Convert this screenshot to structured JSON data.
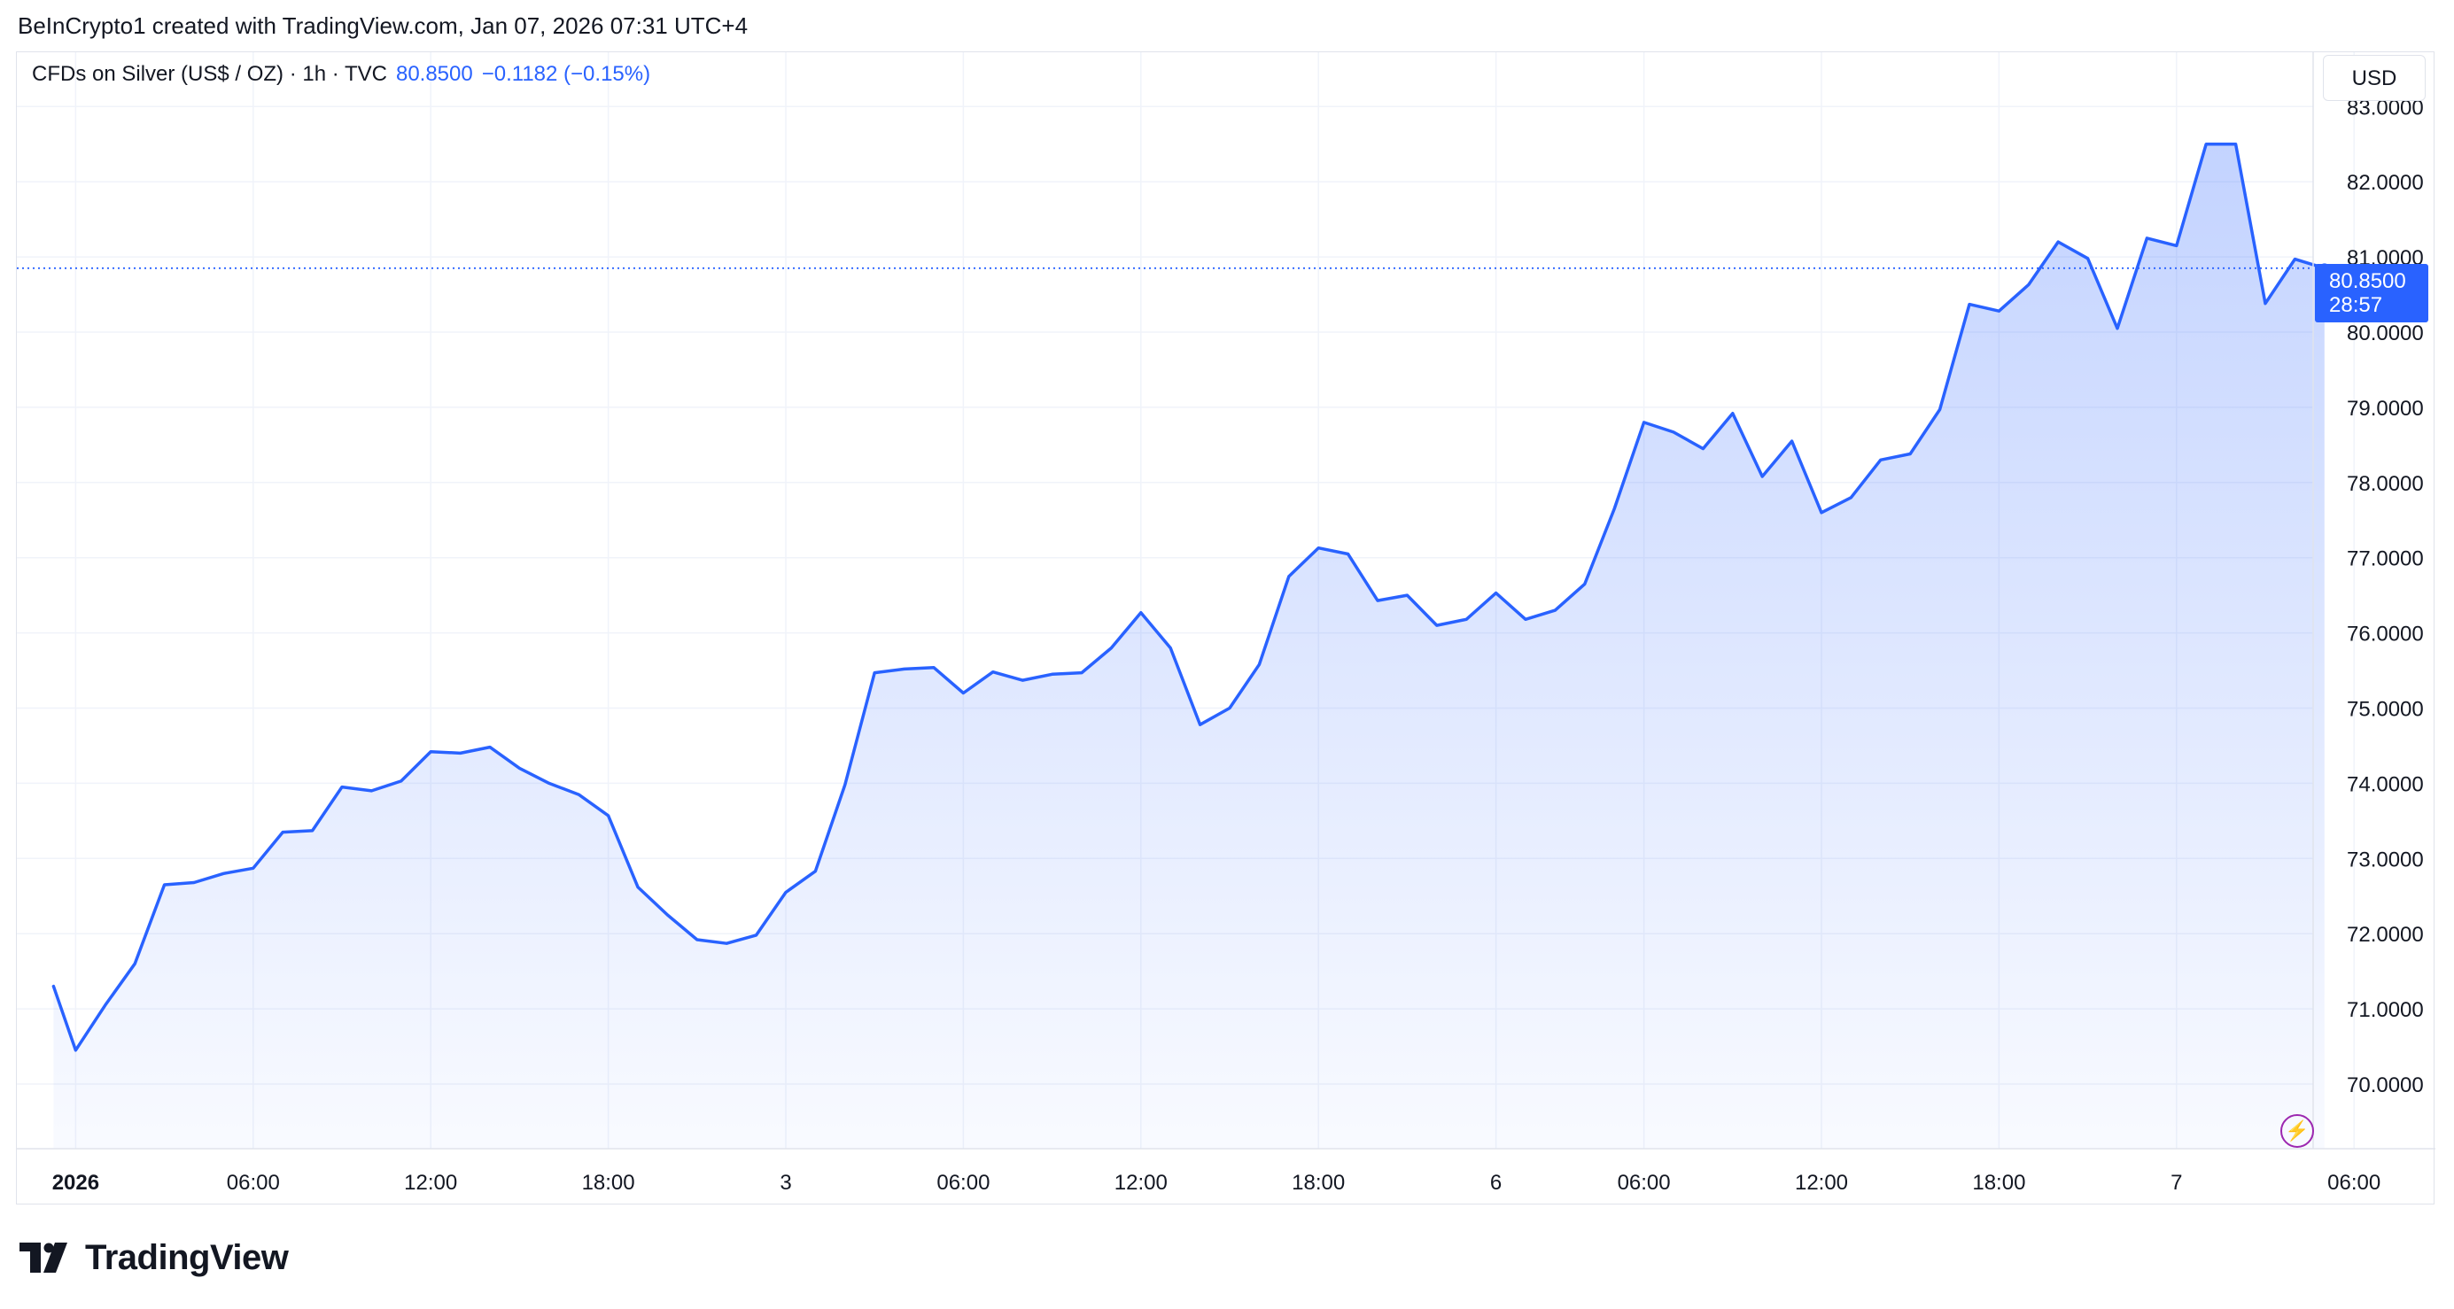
{
  "header": {
    "credit": "BeInCrypto1 created with TradingView.com, Jan 07, 2026 07:31 UTC+4"
  },
  "legend": {
    "name": "CFDs on Silver (US$ / OZ) · 1h · TVC",
    "price": "80.8500",
    "change": "−0.1182 (−0.15%)"
  },
  "toolbar": {
    "currency": "USD"
  },
  "last_price": {
    "value": "80.8500",
    "countdown": "28:57"
  },
  "brand": {
    "name": "TradingView"
  },
  "colors": {
    "line": "#2962ff",
    "grid": "#f0f3fa",
    "text": "#131722",
    "accent_purple": "#9c27b0"
  },
  "icons": {
    "brand_logo": "tradingview-logo-icon",
    "alert": "lightning-icon"
  },
  "chart_data": {
    "type": "area",
    "title": "CFDs on Silver (US$ / OZ) · 1h · TVC",
    "xlabel": "",
    "ylabel": "",
    "ylim": [
      69.5,
      83.5
    ],
    "xlim": [
      -0.75,
      76.6
    ],
    "grid": true,
    "price_scale_side": "right",
    "yticks": [
      70,
      71,
      72,
      73,
      74,
      75,
      76,
      77,
      78,
      79,
      80,
      81,
      82,
      83
    ],
    "ytick_labels": [
      "70.0000",
      "71.0000",
      "72.0000",
      "73.0000",
      "74.0000",
      "75.0000",
      "76.0000",
      "77.0000",
      "78.0000",
      "79.0000",
      "80.0000",
      "81.0000",
      "82.0000",
      "83.0000"
    ],
    "xticks": [
      {
        "x": 0,
        "label": "2026",
        "bold": true
      },
      {
        "x": 6,
        "label": "06:00"
      },
      {
        "x": 12,
        "label": "12:00"
      },
      {
        "x": 18,
        "label": "18:00"
      },
      {
        "x": 24,
        "label": "3"
      },
      {
        "x": 30,
        "label": "06:00"
      },
      {
        "x": 36,
        "label": "12:00"
      },
      {
        "x": 42,
        "label": "18:00"
      },
      {
        "x": 48,
        "label": "6"
      },
      {
        "x": 53,
        "label": "06:00"
      },
      {
        "x": 59,
        "label": "12:00"
      },
      {
        "x": 65,
        "label": "18:00"
      },
      {
        "x": 71,
        "label": "7"
      },
      {
        "x": 77,
        "label": "06:00"
      }
    ],
    "series": [
      {
        "values": [
          {
            "x": -0.75,
            "y": 71.3
          },
          {
            "x": 0,
            "y": 70.45
          },
          {
            "x": 1,
            "y": 71.05
          },
          {
            "x": 2,
            "y": 71.6
          },
          {
            "x": 3,
            "y": 72.65
          },
          {
            "x": 4,
            "y": 72.68
          },
          {
            "x": 5,
            "y": 72.8
          },
          {
            "x": 6,
            "y": 72.87
          },
          {
            "x": 7,
            "y": 73.35
          },
          {
            "x": 8,
            "y": 73.37
          },
          {
            "x": 9,
            "y": 73.95
          },
          {
            "x": 10,
            "y": 73.9
          },
          {
            "x": 11,
            "y": 74.03
          },
          {
            "x": 12,
            "y": 74.42
          },
          {
            "x": 13,
            "y": 74.4
          },
          {
            "x": 14,
            "y": 74.48
          },
          {
            "x": 15,
            "y": 74.2
          },
          {
            "x": 16,
            "y": 74.0
          },
          {
            "x": 17,
            "y": 73.85
          },
          {
            "x": 18,
            "y": 73.57
          },
          {
            "x": 19,
            "y": 72.62
          },
          {
            "x": 20,
            "y": 72.25
          },
          {
            "x": 21,
            "y": 71.92
          },
          {
            "x": 22,
            "y": 71.87
          },
          {
            "x": 23,
            "y": 71.98
          },
          {
            "x": 24,
            "y": 72.55
          },
          {
            "x": 25,
            "y": 72.83
          },
          {
            "x": 26,
            "y": 73.98
          },
          {
            "x": 27,
            "y": 75.47
          },
          {
            "x": 28,
            "y": 75.52
          },
          {
            "x": 29,
            "y": 75.54
          },
          {
            "x": 30,
            "y": 75.2
          },
          {
            "x": 31,
            "y": 75.48
          },
          {
            "x": 32,
            "y": 75.37
          },
          {
            "x": 33,
            "y": 75.45
          },
          {
            "x": 34,
            "y": 75.47
          },
          {
            "x": 35,
            "y": 75.8
          },
          {
            "x": 36,
            "y": 76.27
          },
          {
            "x": 37,
            "y": 75.8
          },
          {
            "x": 38,
            "y": 74.78
          },
          {
            "x": 39,
            "y": 75.0
          },
          {
            "x": 40,
            "y": 75.58
          },
          {
            "x": 41,
            "y": 76.75
          },
          {
            "x": 42,
            "y": 77.13
          },
          {
            "x": 43,
            "y": 77.05
          },
          {
            "x": 44,
            "y": 76.43
          },
          {
            "x": 45,
            "y": 76.5
          },
          {
            "x": 46,
            "y": 76.1
          },
          {
            "x": 47,
            "y": 76.18
          },
          {
            "x": 48,
            "y": 76.53
          },
          {
            "x": 49,
            "y": 76.18
          },
          {
            "x": 50,
            "y": 76.3
          },
          {
            "x": 51,
            "y": 76.65
          },
          {
            "x": 52,
            "y": 77.65
          },
          {
            "x": 53,
            "y": 78.8
          },
          {
            "x": 54,
            "y": 78.67
          },
          {
            "x": 55,
            "y": 78.45
          },
          {
            "x": 56,
            "y": 78.92
          },
          {
            "x": 57,
            "y": 78.08
          },
          {
            "x": 58,
            "y": 78.55
          },
          {
            "x": 59,
            "y": 77.6
          },
          {
            "x": 60,
            "y": 77.8
          },
          {
            "x": 61,
            "y": 78.3
          },
          {
            "x": 62,
            "y": 78.38
          },
          {
            "x": 63,
            "y": 78.97
          },
          {
            "x": 64,
            "y": 80.37
          },
          {
            "x": 65,
            "y": 80.28
          },
          {
            "x": 66,
            "y": 80.63
          },
          {
            "x": 67,
            "y": 81.2
          },
          {
            "x": 68,
            "y": 80.98
          },
          {
            "x": 69,
            "y": 80.05
          },
          {
            "x": 70,
            "y": 81.25
          },
          {
            "x": 71,
            "y": 81.15
          },
          {
            "x": 72,
            "y": 82.5
          },
          {
            "x": 73,
            "y": 82.5
          },
          {
            "x": 74,
            "y": 80.38
          },
          {
            "x": 75,
            "y": 80.97
          },
          {
            "x": 76,
            "y": 80.85
          }
        ]
      }
    ],
    "last_value": 80.85
  }
}
